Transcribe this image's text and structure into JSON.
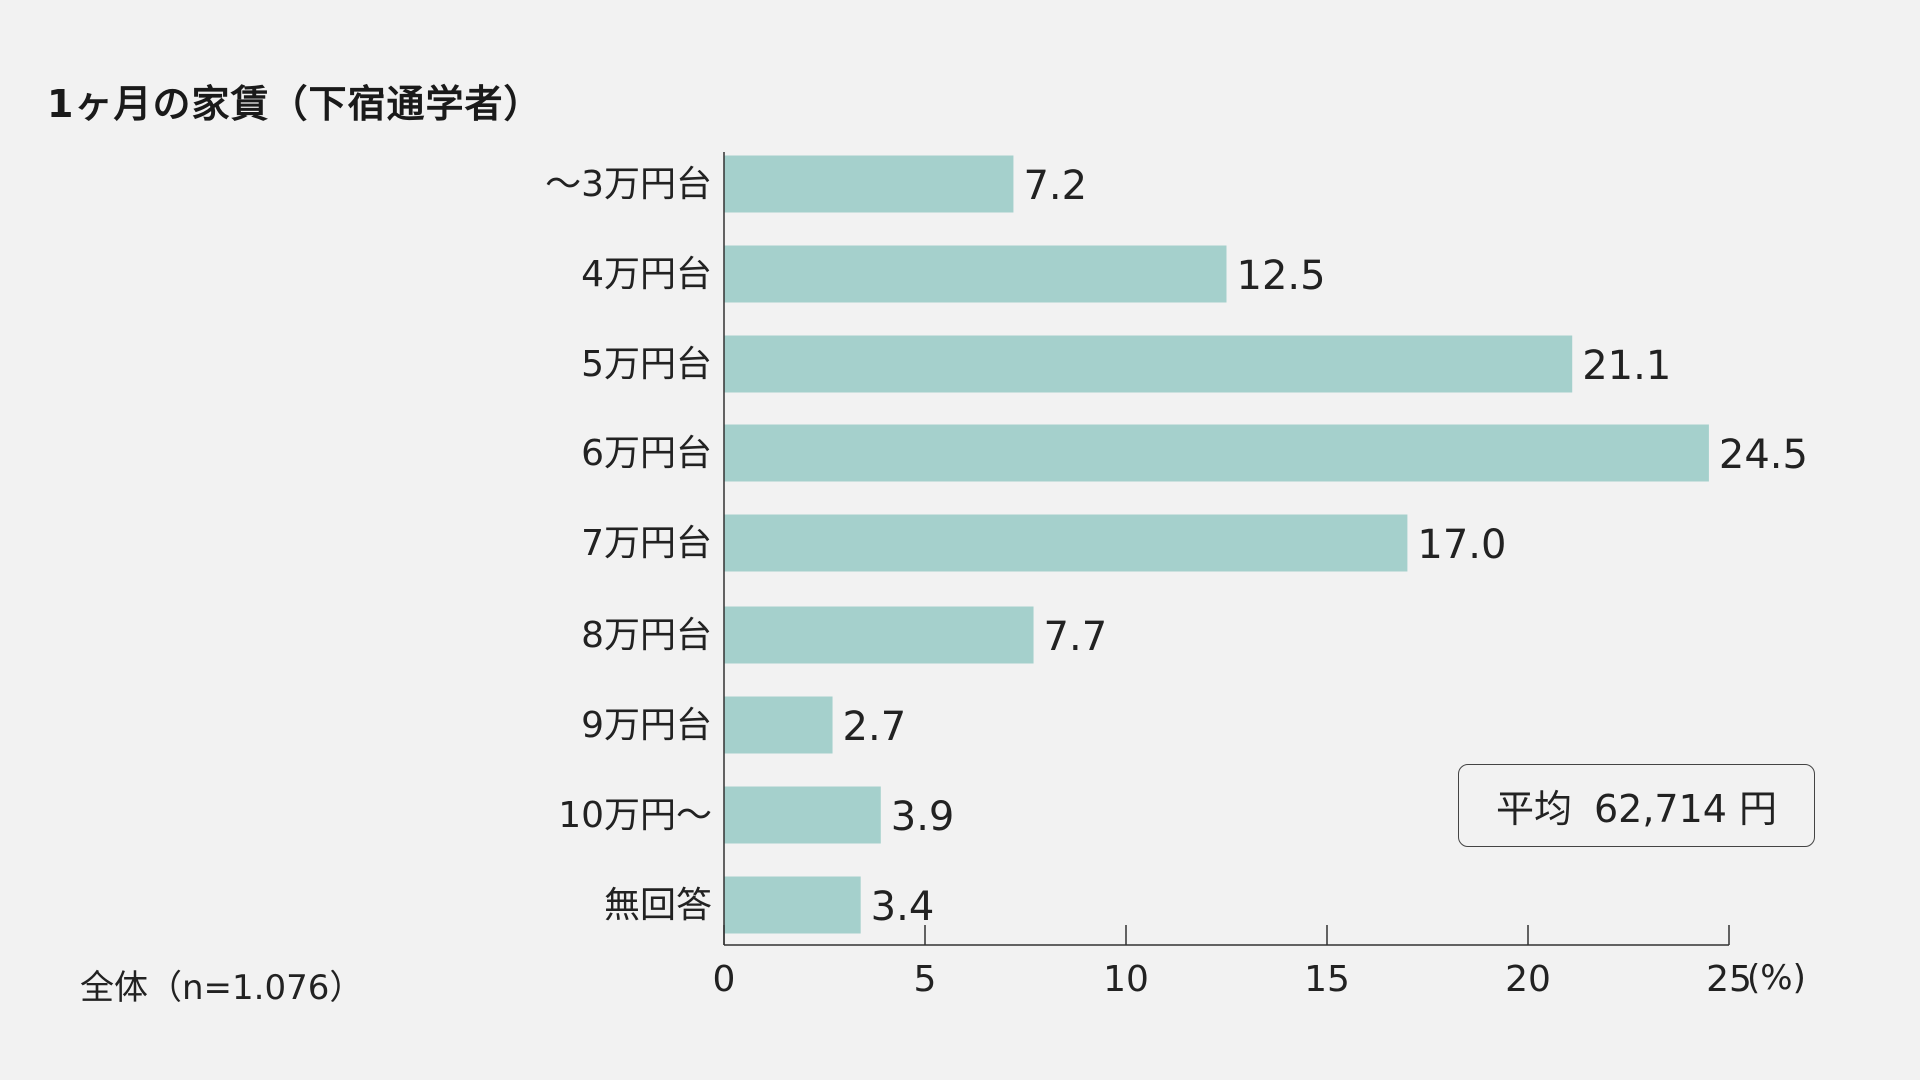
{
  "chart_data": {
    "type": "bar",
    "orientation": "horizontal",
    "title": "1ヶ月の家賃（下宿通学者）",
    "categories": [
      "～3万円台",
      "4万円台",
      "5万円台",
      "6万円台",
      "7万円台",
      "8万円台",
      "9万円台",
      "10万円～",
      "無回答"
    ],
    "values": [
      7.2,
      12.5,
      21.1,
      24.5,
      17.0,
      7.7,
      2.7,
      3.9,
      3.4
    ],
    "value_labels": [
      "7.2",
      "12.5",
      "21.1",
      "24.5",
      "17.0",
      "7.7",
      "2.7",
      "3.9",
      "3.4"
    ],
    "xlim": [
      0,
      25
    ],
    "x_ticks": [
      0,
      5,
      10,
      15,
      20,
      25
    ],
    "unit_label": "(%)",
    "grid": false,
    "bar_color": "#a5d0cc"
  },
  "base_note": "全体（n=1.076）",
  "average": {
    "label": "平均",
    "value": "62,714 円"
  }
}
